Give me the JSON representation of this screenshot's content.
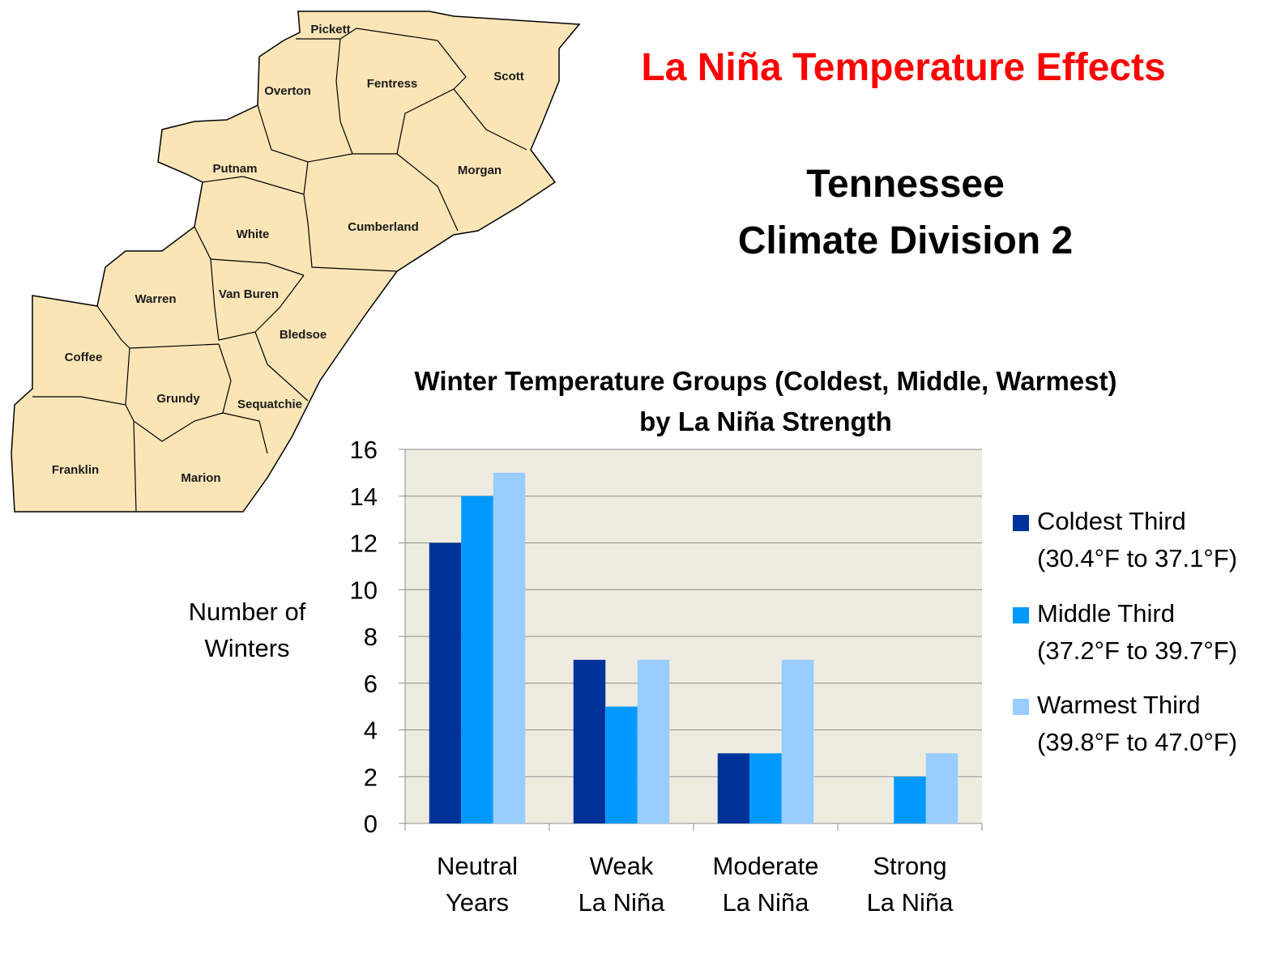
{
  "title": "La Niña Temperature Effects",
  "subtitle_lines": [
    "Tennessee",
    "Climate Division 2"
  ],
  "map": {
    "counties": [
      "Pickett",
      "Overton",
      "Fentress",
      "Scott",
      "Putnam",
      "Morgan",
      "White",
      "Cumberland",
      "Warren",
      "Van Buren",
      "Bledsoe",
      "Coffee",
      "Grundy",
      "Sequatchie",
      "Franklin",
      "Marion"
    ],
    "fill_color": "#fbe5b7",
    "line_color": "#000000"
  },
  "chart_data": {
    "type": "bar",
    "title_lines": [
      "Winter Temperature Groups (Coldest, Middle, Warmest)",
      "by La Niña Strength"
    ],
    "ylabel_lines": [
      "Number of",
      "Winters"
    ],
    "categories": [
      [
        "Neutral",
        "Years"
      ],
      [
        "Weak",
        "La Niña"
      ],
      [
        "Moderate",
        "La Niña"
      ],
      [
        "Strong",
        "La Niña"
      ]
    ],
    "ylim": [
      0,
      16
    ],
    "yticks": [
      0,
      2,
      4,
      6,
      8,
      10,
      12,
      14,
      16
    ],
    "grid": true,
    "legend_position": "right",
    "plot_background": "#eeece1",
    "series": [
      {
        "name": "Coldest Third",
        "range": "(30.4°F to 37.1°F)",
        "color": "#003399",
        "values": [
          12,
          7,
          3,
          0
        ]
      },
      {
        "name": "Middle Third",
        "range": "(37.2°F to 39.7°F)",
        "color": "#0099ff",
        "values": [
          14,
          5,
          3,
          2
        ]
      },
      {
        "name": "Warmest Third",
        "range": "(39.8°F to 47.0°F)",
        "color": "#99ccff",
        "values": [
          15,
          7,
          7,
          3
        ]
      }
    ]
  }
}
